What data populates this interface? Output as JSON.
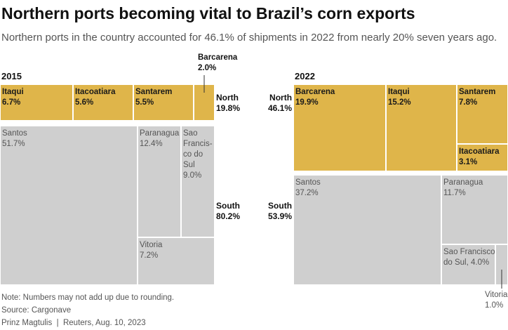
{
  "title": "Northern ports becoming vital to Brazil’s corn exports",
  "subtitle": "Northern ports in the country accounted for 46.1% of shipments in 2022 from nearly 20% seven years ago.",
  "colors": {
    "north": "#dfb54a",
    "south": "#cfcfcf"
  },
  "chart_data": [
    {
      "type": "treemap",
      "year": "2015",
      "groups": [
        {
          "name": "North",
          "share": "19.8%",
          "value": 19.8,
          "ports": [
            {
              "name": "Itaqui",
              "value": 6.7,
              "label": "6.7%"
            },
            {
              "name": "Itacoatiara",
              "value": 5.6,
              "label": "5.6%"
            },
            {
              "name": "Santarem",
              "value": 5.5,
              "label": "5.5%"
            },
            {
              "name": "Barcarena",
              "value": 2.0,
              "label": "2.0%"
            }
          ]
        },
        {
          "name": "South",
          "share": "80.2%",
          "value": 80.2,
          "ports": [
            {
              "name": "Santos",
              "value": 51.7,
              "label": "51.7%"
            },
            {
              "name": "Paranagua",
              "value": 12.4,
              "label": "12.4%"
            },
            {
              "name": "Sao Francisco do Sul",
              "name_lines": [
                "Sao",
                "Francis-",
                "co do",
                "Sul"
              ],
              "value": 9.0,
              "label": "9.0%"
            },
            {
              "name": "Vitoria",
              "value": 7.2,
              "label": "7.2%"
            }
          ]
        }
      ]
    },
    {
      "type": "treemap",
      "year": "2022",
      "groups": [
        {
          "name": "North",
          "share": "46.1%",
          "value": 46.1,
          "ports": [
            {
              "name": "Barcarena",
              "value": 19.9,
              "label": "19.9%"
            },
            {
              "name": "Itaqui",
              "value": 15.2,
              "label": "15.2%"
            },
            {
              "name": "Santarem",
              "value": 7.8,
              "label": "7.8%"
            },
            {
              "name": "Itacoatiara",
              "value": 3.1,
              "label": "3.1%"
            }
          ]
        },
        {
          "name": "South",
          "share": "53.9%",
          "value": 53.9,
          "ports": [
            {
              "name": "Santos",
              "value": 37.2,
              "label": "37.2%"
            },
            {
              "name": "Paranagua",
              "value": 11.7,
              "label": "11.7%"
            },
            {
              "name": "Sao Francisco do Sul",
              "value_text": "Sao Francisco do Sul, 4.0%",
              "value": 4.0,
              "label": "4.0%"
            },
            {
              "name": "Vitoria",
              "value": 1.0,
              "label": "1.0%"
            }
          ]
        }
      ]
    }
  ],
  "footer": {
    "note": "Note: Numbers may not add up due to rounding.",
    "source": "Source: Cargonave",
    "credit": "Prinz Magtulis  |  Reuters, Aug. 10, 2023"
  }
}
